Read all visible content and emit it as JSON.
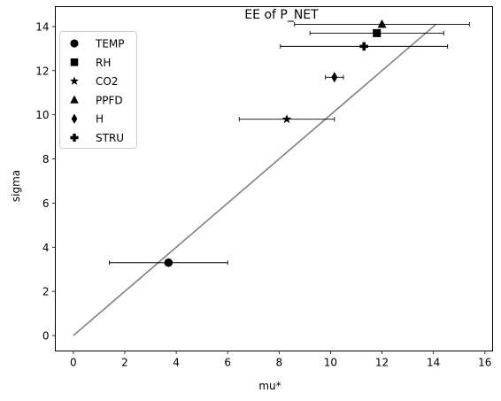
{
  "chart_data": {
    "type": "scatter",
    "title": "EE of P_NET",
    "xlabel": "mu*",
    "ylabel": "sigma",
    "xlim": [
      -0.7,
      16.3
    ],
    "ylim": [
      -0.7,
      14.9
    ],
    "xticks": [
      0,
      2,
      4,
      6,
      8,
      10,
      12,
      14,
      16
    ],
    "yticks": [
      0,
      2,
      4,
      6,
      8,
      10,
      12,
      14
    ],
    "grid": false,
    "legend_position": "top-left",
    "series": [
      {
        "name": "TEMP",
        "marker": "circle",
        "x": 3.7,
        "y": 3.3,
        "xerr": 2.3
      },
      {
        "name": "RH",
        "marker": "square",
        "x": 11.8,
        "y": 13.7,
        "xerr": 2.6
      },
      {
        "name": "CO2",
        "marker": "star",
        "x": 8.3,
        "y": 9.8,
        "xerr": 1.85
      },
      {
        "name": "PPFD",
        "marker": "triangle",
        "x": 12.0,
        "y": 14.1,
        "xerr": 3.4
      },
      {
        "name": "H",
        "marker": "diamond",
        "x": 10.15,
        "y": 11.7,
        "xerr": 0.35
      },
      {
        "name": "STRU",
        "marker": "plus",
        "x": 11.3,
        "y": 13.1,
        "xerr": 3.25
      }
    ],
    "reference_line": {
      "x": [
        0,
        14.1
      ],
      "y": [
        0,
        14.1
      ],
      "color": "#808080"
    },
    "marker_color": "#000000",
    "errorbar_color": "#000000"
  }
}
